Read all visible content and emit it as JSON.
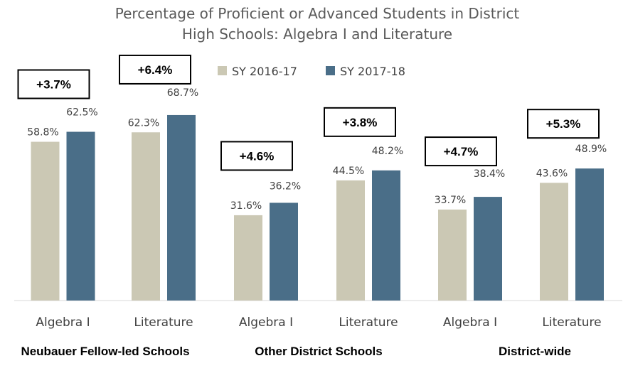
{
  "chart_data": {
    "type": "bar",
    "title_lines": [
      "Percentage of Proficient or Advanced Students in District",
      "High Schools: Algebra I and Literature"
    ],
    "groups": [
      "Neubauer Fellow-led Schools",
      "Other District Schools",
      "District-wide"
    ],
    "categories": [
      "Algebra I",
      "Literature",
      "Algebra I",
      "Literature",
      "Algebra I",
      "Literature"
    ],
    "series": [
      {
        "name": "SY 2016-17",
        "color": "#cbc8b4",
        "values": [
          58.8,
          62.3,
          31.6,
          44.5,
          33.7,
          43.6
        ],
        "labels": [
          "58.8%",
          "62.3%",
          "31.6%",
          "44.5%",
          "33.7%",
          "43.6%"
        ]
      },
      {
        "name": "SY 2017-18",
        "color": "#4a6e88",
        "values": [
          62.5,
          68.7,
          36.2,
          48.2,
          38.4,
          48.9
        ],
        "labels": [
          "62.5%",
          "68.7%",
          "36.2%",
          "48.2%",
          "38.4%",
          "48.9%"
        ]
      }
    ],
    "changes": [
      "+3.7%",
      "+6.4%",
      "+4.6%",
      "+3.8%",
      "+4.7%",
      "+5.3%"
    ],
    "ylim": [
      0,
      100
    ],
    "legend_position": "top-center",
    "grid": false
  }
}
